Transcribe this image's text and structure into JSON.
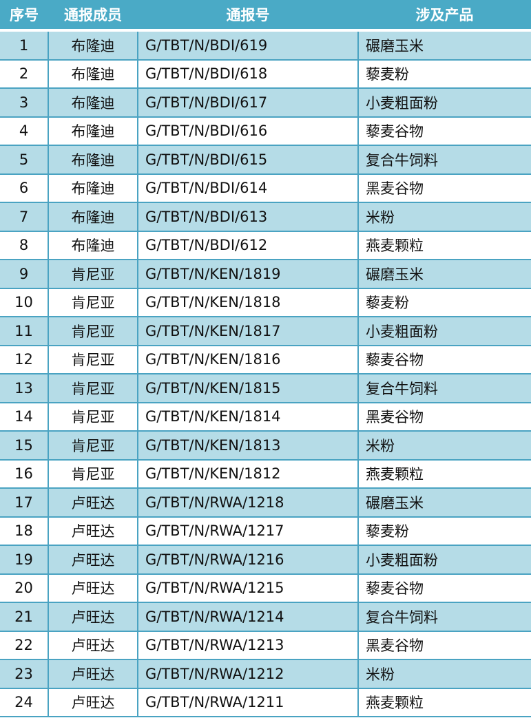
{
  "headers": [
    "序号",
    "通报成员",
    "通报号",
    "涉及产品"
  ],
  "rows": [
    [
      "1",
      "布隆迪",
      "G/TBT/N/BDI/619",
      "碾磨玉米"
    ],
    [
      "2",
      "布隆迪",
      "G/TBT/N/BDI/618",
      "藜麦粉"
    ],
    [
      "3",
      "布隆迪",
      "G/TBT/N/BDI/617",
      "小麦粗面粉"
    ],
    [
      "4",
      "布隆迪",
      "G/TBT/N/BDI/616",
      "藜麦谷物"
    ],
    [
      "5",
      "布隆迪",
      "G/TBT/N/BDI/615",
      "复合牛饲料"
    ],
    [
      "6",
      "布隆迪",
      "G/TBT/N/BDI/614",
      "黑麦谷物"
    ],
    [
      "7",
      "布隆迪",
      "G/TBT/N/BDI/613",
      "米粉"
    ],
    [
      "8",
      "布隆迪",
      "G/TBT/N/BDI/612",
      "燕麦颗粒"
    ],
    [
      "9",
      "肯尼亚",
      "G/TBT/N/KEN/1819",
      "碾磨玉米"
    ],
    [
      "10",
      "肯尼亚",
      "G/TBT/N/KEN/1818",
      "藜麦粉"
    ],
    [
      "11",
      "肯尼亚",
      "G/TBT/N/KEN/1817",
      "小麦粗面粉"
    ],
    [
      "12",
      "肯尼亚",
      "G/TBT/N/KEN/1816",
      "藜麦谷物"
    ],
    [
      "13",
      "肯尼亚",
      "G/TBT/N/KEN/1815",
      "复合牛饲料"
    ],
    [
      "14",
      "肯尼亚",
      "G/TBT/N/KEN/1814",
      "黑麦谷物"
    ],
    [
      "15",
      "肯尼亚",
      "G/TBT/N/KEN/1813",
      "米粉"
    ],
    [
      "16",
      "肯尼亚",
      "G/TBT/N/KEN/1812",
      "燕麦颗粒"
    ],
    [
      "17",
      "卢旺达",
      "G/TBT/N/RWA/1218",
      "碾磨玉米"
    ],
    [
      "18",
      "卢旺达",
      "G/TBT/N/RWA/1217",
      "藜麦粉"
    ],
    [
      "19",
      "卢旺达",
      "G/TBT/N/RWA/1216",
      "小麦粗面粉"
    ],
    [
      "20",
      "卢旺达",
      "G/TBT/N/RWA/1215",
      "藜麦谷物"
    ],
    [
      "21",
      "卢旺达",
      "G/TBT/N/RWA/1214",
      "复合牛饲料"
    ],
    [
      "22",
      "卢旺达",
      "G/TBT/N/RWA/1213",
      "黑麦谷物"
    ],
    [
      "23",
      "卢旺达",
      "G/TBT/N/RWA/1212",
      "米粉"
    ],
    [
      "24",
      "卢旺达",
      "G/TBT/N/RWA/1211",
      "燕麦颗粒"
    ]
  ]
}
